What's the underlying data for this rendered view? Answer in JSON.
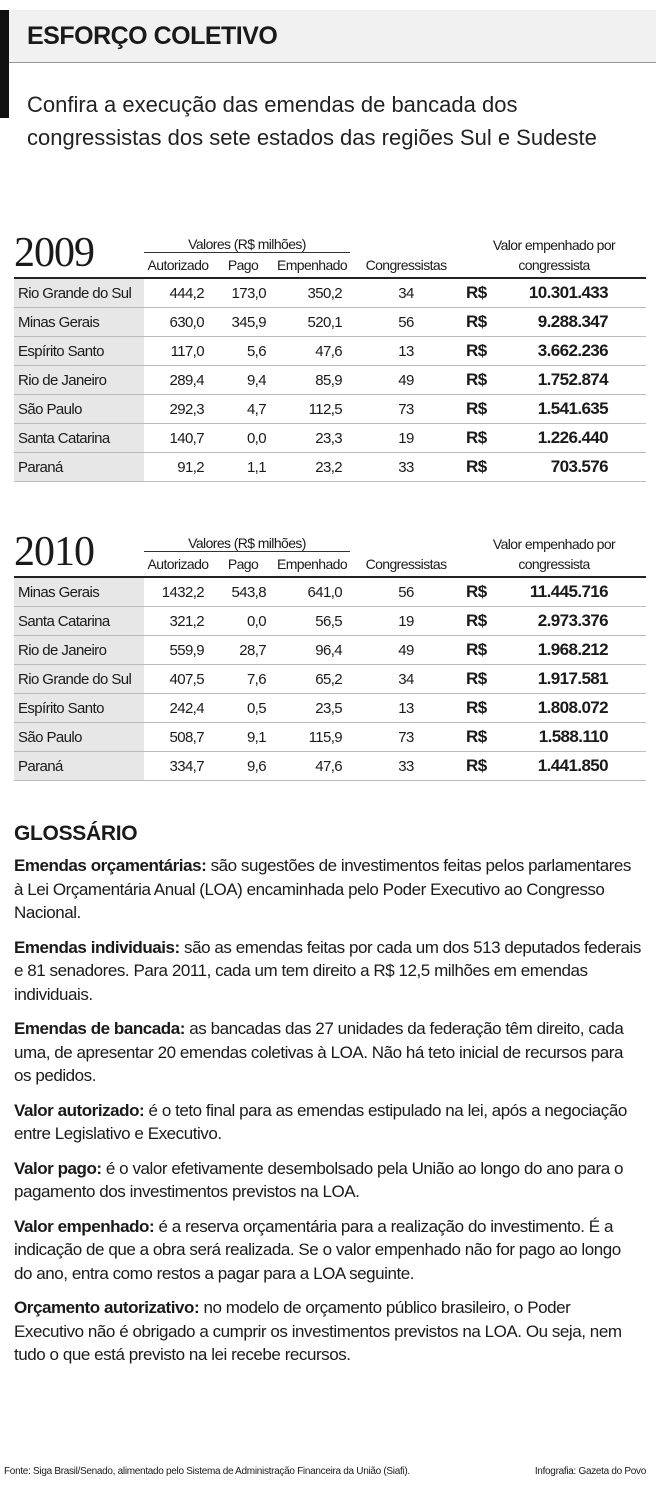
{
  "header": {
    "title": "ESFORÇO COLETIVO",
    "subtitle": "Confira a execução das emendas de bancada dos congressistas dos sete estados das regiões Sul e Sudeste"
  },
  "tables": [
    {
      "year": "2009",
      "group_header": "Valores (R$ milhões)",
      "columns": [
        "Autorizado",
        "Pago",
        "Empenhado",
        "Congressistas"
      ],
      "value_header": "Valor empenhado por congressista",
      "rows": [
        [
          "Rio Grande do Sul",
          "444,2",
          "173,0",
          "350,2",
          "34",
          "R$",
          "10.301.433"
        ],
        [
          "Minas Gerais",
          "630,0",
          "345,9",
          "520,1",
          "56",
          "R$",
          "9.288.347"
        ],
        [
          "Espírito Santo",
          "117,0",
          "5,6",
          "47,6",
          "13",
          "R$",
          "3.662.236"
        ],
        [
          "Rio de Janeiro",
          "289,4",
          "9,4",
          "85,9",
          "49",
          "R$",
          "1.752.874"
        ],
        [
          "São Paulo",
          "292,3",
          "4,7",
          "112,5",
          "73",
          "R$",
          "1.541.635"
        ],
        [
          "Santa Catarina",
          "140,7",
          "0,0",
          "23,3",
          "19",
          "R$",
          "1.226.440"
        ],
        [
          "Paraná",
          "91,2",
          "1,1",
          "23,2",
          "33",
          "R$",
          "703.576"
        ]
      ]
    },
    {
      "year": "2010",
      "group_header": "Valores (R$ milhões)",
      "columns": [
        "Autorizado",
        "Pago",
        "Empenhado",
        "Congressistas"
      ],
      "value_header": "Valor empenhado por congressista",
      "rows": [
        [
          "Minas Gerais",
          "1432,2",
          "543,8",
          "641,0",
          "56",
          "R$",
          "11.445.716"
        ],
        [
          "Santa Catarina",
          "321,2",
          "0,0",
          "56,5",
          "19",
          "R$",
          "2.973.376"
        ],
        [
          "Rio de Janeiro",
          "559,9",
          "28,7",
          "96,4",
          "49",
          "R$",
          "1.968.212"
        ],
        [
          "Rio Grande do Sul",
          "407,5",
          "7,6",
          "65,2",
          "34",
          "R$",
          "1.917.581"
        ],
        [
          "Espírito Santo",
          "242,4",
          "0,5",
          "23,5",
          "13",
          "R$",
          "1.808.072"
        ],
        [
          "São Paulo",
          "508,7",
          "9,1",
          "115,9",
          "73",
          "R$",
          "1.588.110"
        ],
        [
          "Paraná",
          "334,7",
          "9,6",
          "47,6",
          "33",
          "R$",
          "1.441.850"
        ]
      ]
    }
  ],
  "glossary": {
    "title": "GLOSSÁRIO",
    "items": [
      {
        "term": "Emendas orçamentárias:",
        "text": "são sugestões de investimentos feitas pelos parlamentares à Lei Orçamentária Anual (LOA) encaminhada pelo Poder Executivo ao Congresso Nacional."
      },
      {
        "term": "Emendas individuais:",
        "text": "são as emendas feitas por cada um dos 513 deputados federais e 81 senadores. Para 2011, cada um tem direito a R$ 12,5 milhões em emendas individuais."
      },
      {
        "term": "Emendas de bancada:",
        "text": "as bancadas das 27 unidades da federação têm direito, cada uma, de apresentar 20 emendas coletivas à LOA. Não há teto inicial de recursos para os pedidos."
      },
      {
        "term": "Valor autorizado:",
        "text": "é o teto final para as emendas estipulado na lei, após a negociação entre Legislativo e Executivo."
      },
      {
        "term": "Valor pago:",
        "text": "é o valor efetivamente desembolsado pela União ao longo do ano para o pagamento dos investimentos previstos na LOA."
      },
      {
        "term": "Valor empenhado:",
        "text": "é a reserva orçamentária para a realização do investimento. É a indicação de que a obra será realizada. Se o valor empenhado não for pago ao longo do ano, entra como restos a pagar para a LOA seguinte."
      },
      {
        "term": "Orçamento autorizativo:",
        "text": "no modelo de orçamento público brasileiro, o Poder Executivo não é obrigado a cumprir os investimentos previstos na LOA. Ou seja, nem tudo o que está previsto na lei recebe recursos."
      }
    ]
  },
  "footer": {
    "source": "Fonte: Siga Brasil/Senado, alimentado pelo Sistema de Administração Financeira da União (Siafi).",
    "credit": "Infografia: Gazeta do Povo"
  }
}
